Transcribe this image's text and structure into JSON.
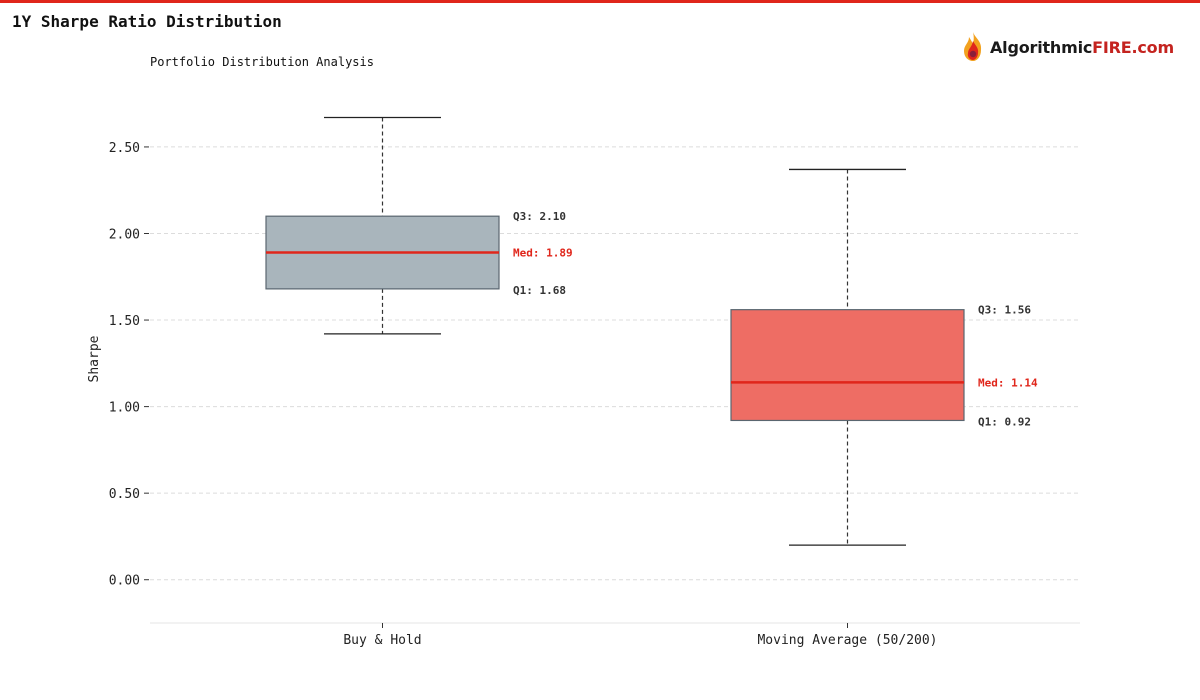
{
  "header": {
    "title": "1Y Sharpe Ratio Distribution",
    "subtitle": "Portfolio Distribution Analysis"
  },
  "logo": {
    "text_dark": "Algorithmic",
    "text_accent": "FIRE.com",
    "icon": "flame-icon"
  },
  "colors": {
    "accent": "#e0261b",
    "box_a_fill": "#a9b5bc",
    "box_b_fill": "#ee6d64",
    "median": "#e0261b"
  },
  "chart_data": {
    "type": "box",
    "title": "1Y Sharpe Ratio Distribution",
    "subtitle": "Portfolio Distribution Analysis",
    "ylabel": "Sharpe",
    "xlabel": "",
    "ylim": [
      -0.25,
      2.8
    ],
    "yticks": [
      "0.00",
      "0.50",
      "1.00",
      "1.50",
      "2.00",
      "2.50"
    ],
    "grid": true,
    "categories": [
      "Buy & Hold",
      "Moving Average (50/200)"
    ],
    "series": [
      {
        "min": 1.42,
        "q1": 1.68,
        "median": 1.89,
        "q3": 2.1,
        "max": 2.67,
        "labels": {
          "q3": "Q3: 2.10",
          "median": "Med: 1.89",
          "q1": "Q1: 1.68"
        }
      },
      {
        "min": 0.2,
        "q1": 0.92,
        "median": 1.14,
        "q3": 1.56,
        "max": 2.37,
        "labels": {
          "q3": "Q3: 1.56",
          "median": "Med: 1.14",
          "q1": "Q1: 0.92"
        }
      }
    ]
  }
}
